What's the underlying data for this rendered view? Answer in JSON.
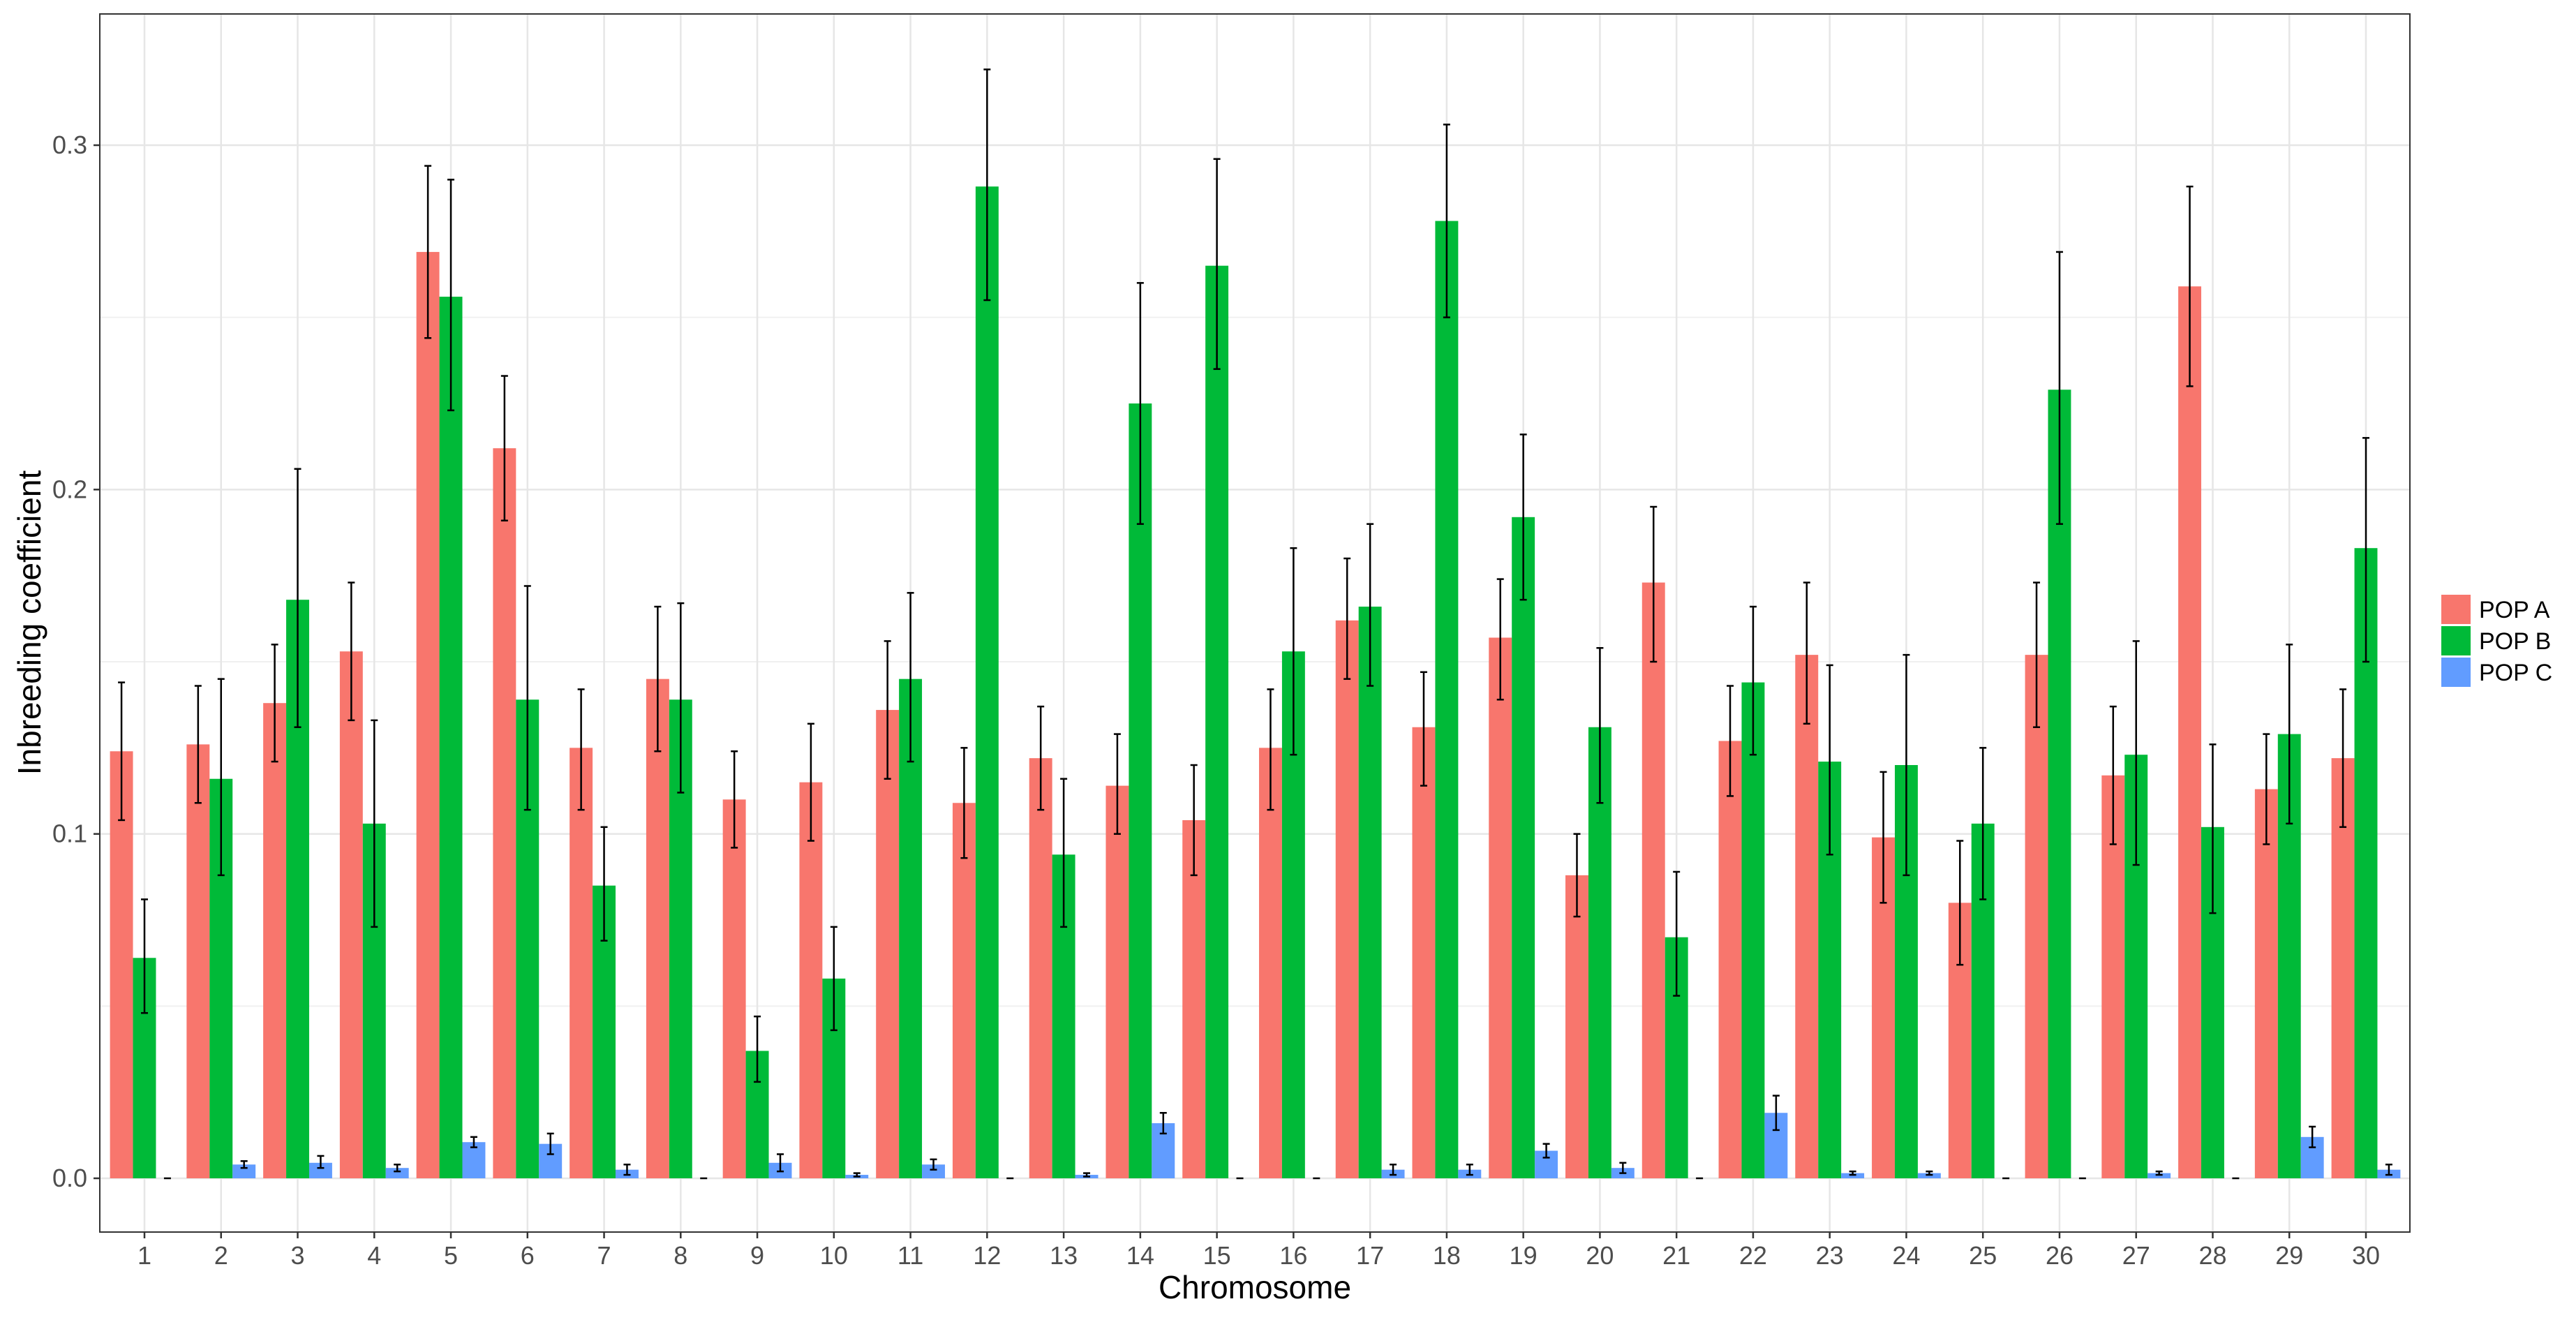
{
  "chart_data": {
    "type": "bar",
    "xlabel": "Chromosome",
    "ylabel": "Inbreeding coefficient",
    "ylim": [
      -0.0045,
      0.337
    ],
    "yticks": [
      0.0,
      0.1,
      0.2,
      0.3
    ],
    "ytick_labels": [
      "0.0",
      "0.1",
      "0.2",
      "0.3"
    ],
    "grid": true,
    "legend_position": "right",
    "error_bars": true,
    "categories": [
      "1",
      "2",
      "3",
      "4",
      "5",
      "6",
      "7",
      "8",
      "9",
      "10",
      "11",
      "12",
      "13",
      "14",
      "15",
      "16",
      "17",
      "18",
      "19",
      "20",
      "21",
      "22",
      "23",
      "24",
      "25",
      "26",
      "27",
      "28",
      "29",
      "30"
    ],
    "series": [
      {
        "name": "POP A",
        "color": "#F8766D",
        "values": [
          0.124,
          0.126,
          0.138,
          0.153,
          0.269,
          0.212,
          0.125,
          0.145,
          0.11,
          0.115,
          0.136,
          0.109,
          0.122,
          0.114,
          0.104,
          0.125,
          0.162,
          0.131,
          0.157,
          0.088,
          0.173,
          0.127,
          0.152,
          0.099,
          0.08,
          0.152,
          0.117,
          0.259,
          0.113,
          0.122
        ],
        "err_low": [
          0.104,
          0.109,
          0.121,
          0.133,
          0.244,
          0.191,
          0.107,
          0.124,
          0.096,
          0.098,
          0.116,
          0.093,
          0.107,
          0.1,
          0.088,
          0.107,
          0.145,
          0.114,
          0.139,
          0.076,
          0.15,
          0.111,
          0.132,
          0.08,
          0.062,
          0.131,
          0.097,
          0.23,
          0.097,
          0.102
        ],
        "err_high": [
          0.144,
          0.143,
          0.155,
          0.173,
          0.294,
          0.233,
          0.142,
          0.166,
          0.124,
          0.132,
          0.156,
          0.125,
          0.137,
          0.129,
          0.12,
          0.142,
          0.18,
          0.147,
          0.174,
          0.1,
          0.195,
          0.143,
          0.173,
          0.118,
          0.098,
          0.173,
          0.137,
          0.288,
          0.129,
          0.142
        ]
      },
      {
        "name": "POP B",
        "color": "#00BA38",
        "values": [
          0.064,
          0.116,
          0.168,
          0.103,
          0.256,
          0.139,
          0.085,
          0.139,
          0.037,
          0.058,
          0.145,
          0.288,
          0.094,
          0.225,
          0.265,
          0.153,
          0.166,
          0.278,
          0.192,
          0.131,
          0.07,
          0.144,
          0.121,
          0.12,
          0.103,
          0.229,
          0.123,
          0.102,
          0.129,
          0.183
        ],
        "err_low": [
          0.048,
          0.088,
          0.131,
          0.073,
          0.223,
          0.107,
          0.069,
          0.112,
          0.028,
          0.043,
          0.121,
          0.255,
          0.073,
          0.19,
          0.235,
          0.123,
          0.143,
          0.25,
          0.168,
          0.109,
          0.053,
          0.123,
          0.094,
          0.088,
          0.081,
          0.19,
          0.091,
          0.077,
          0.103,
          0.15
        ],
        "err_high": [
          0.081,
          0.145,
          0.206,
          0.133,
          0.29,
          0.172,
          0.102,
          0.167,
          0.047,
          0.073,
          0.17,
          0.322,
          0.116,
          0.26,
          0.296,
          0.183,
          0.19,
          0.306,
          0.216,
          0.154,
          0.089,
          0.166,
          0.149,
          0.152,
          0.125,
          0.269,
          0.156,
          0.126,
          0.155,
          0.215
        ]
      },
      {
        "name": "POP C",
        "color": "#619CFF",
        "values": [
          0.0,
          0.004,
          0.0045,
          0.003,
          0.0105,
          0.01,
          0.0025,
          0.0,
          0.0045,
          0.001,
          0.004,
          0.0,
          0.001,
          0.016,
          0.0,
          0.0,
          0.0025,
          0.0025,
          0.008,
          0.003,
          0.0,
          0.019,
          0.0015,
          0.0015,
          0.0,
          0.0,
          0.0015,
          0.0,
          0.012,
          0.0025
        ],
        "err_low": [
          0.0,
          0.003,
          0.003,
          0.002,
          0.009,
          0.007,
          0.001,
          0.0,
          0.002,
          0.0005,
          0.0025,
          0.0,
          0.0005,
          0.013,
          0.0,
          0.0,
          0.001,
          0.001,
          0.006,
          0.0015,
          0.0,
          0.014,
          0.001,
          0.001,
          0.0,
          0.0,
          0.001,
          0.0,
          0.009,
          0.001
        ],
        "err_high": [
          0.0,
          0.005,
          0.0065,
          0.004,
          0.012,
          0.013,
          0.004,
          0.0,
          0.007,
          0.0015,
          0.0055,
          0.0,
          0.0015,
          0.019,
          0.0,
          0.0,
          0.004,
          0.004,
          0.01,
          0.0045,
          0.0,
          0.024,
          0.002,
          0.002,
          0.0,
          0.0,
          0.002,
          0.0,
          0.015,
          0.004
        ]
      }
    ]
  }
}
